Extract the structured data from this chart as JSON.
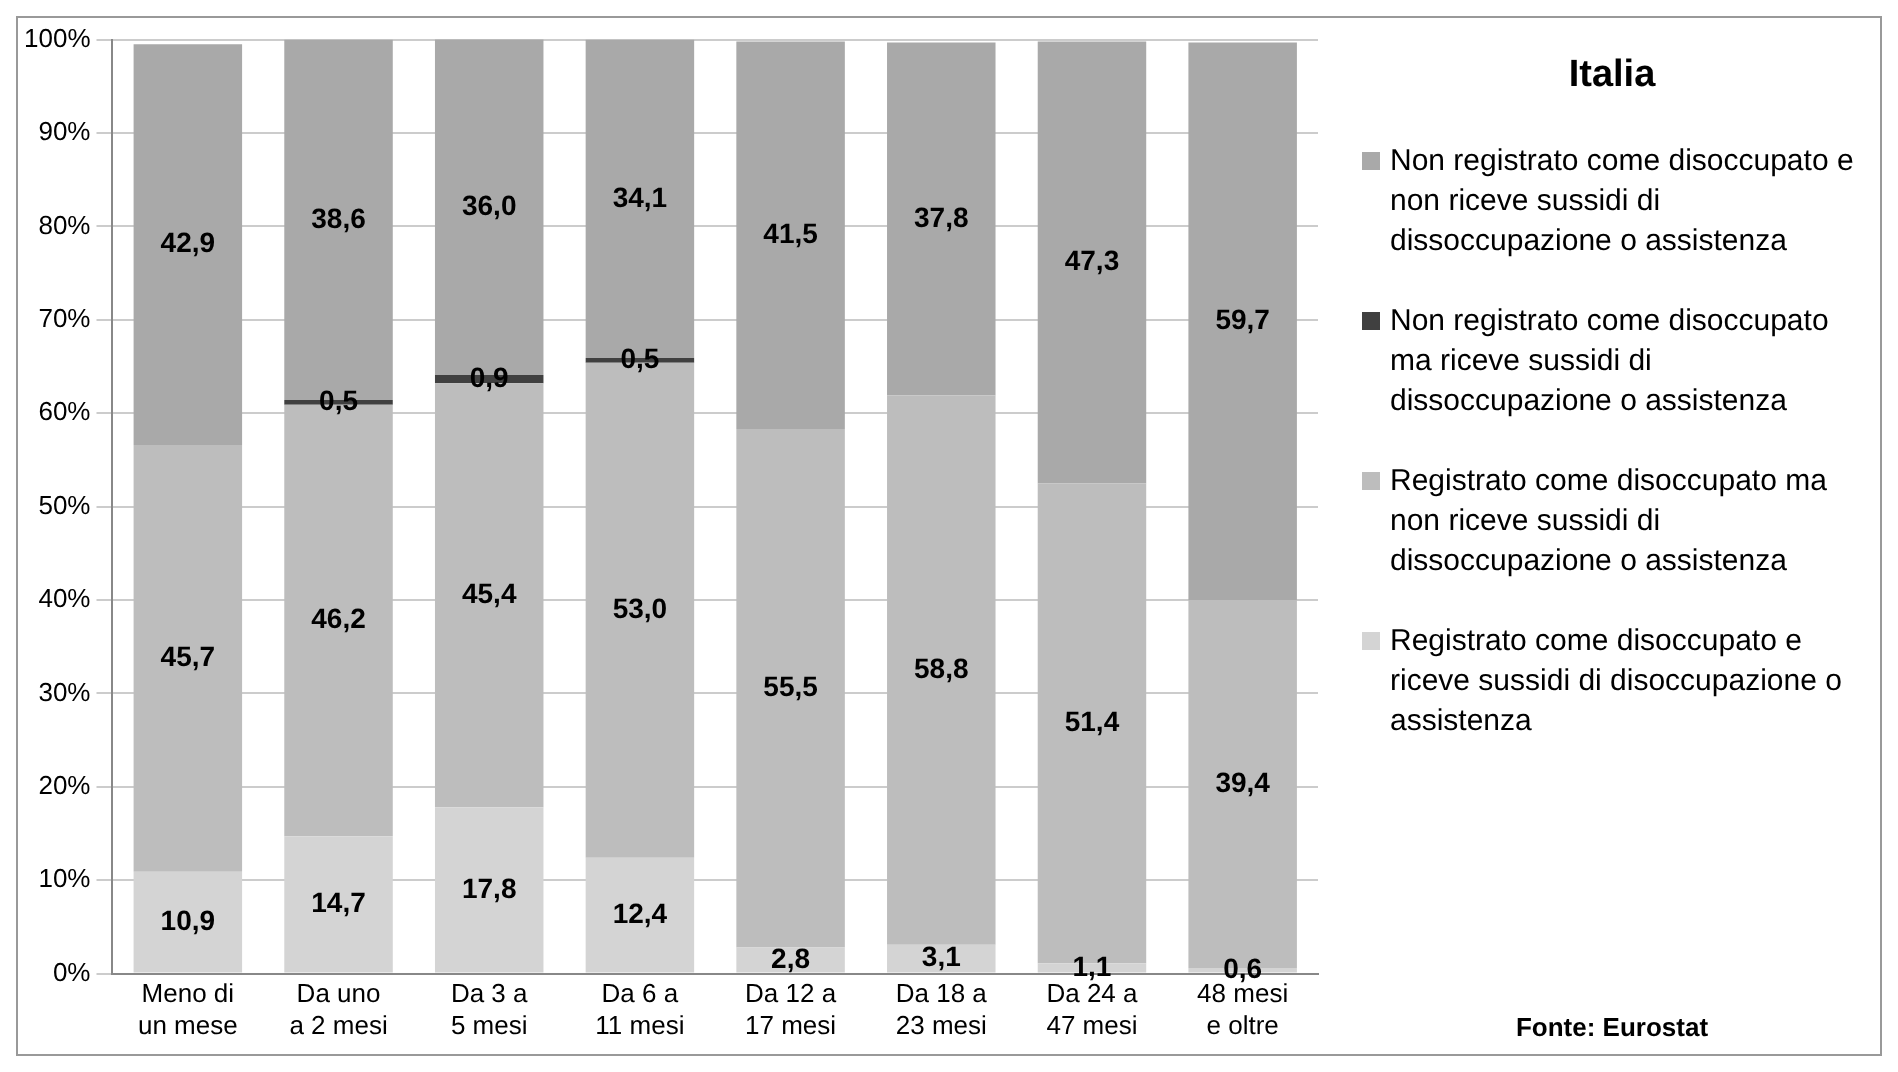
{
  "chart_data": {
    "type": "bar",
    "stacked": true,
    "legend_title": "Italia",
    "legend": "right",
    "grid": "y",
    "categories": [
      "Meno di un mese",
      "Da uno a 2 mesi",
      "Da 3 a 5 mesi",
      "Da 6 a 11 mesi",
      "Da 12 a 17 mesi",
      "Da 18 a 23 mesi",
      "Da 24 a 47 mesi",
      "48 mesi e oltre"
    ],
    "ylim": [
      0,
      100
    ],
    "yticks": [
      {
        "value": 0,
        "label": "0%"
      },
      {
        "value": 10,
        "label": "10%"
      },
      {
        "value": 20,
        "label": "20%"
      },
      {
        "value": 30,
        "label": "30%"
      },
      {
        "value": 40,
        "label": "40%"
      },
      {
        "value": 50,
        "label": "50%"
      },
      {
        "value": 60,
        "label": "60%"
      },
      {
        "value": 70,
        "label": "70%"
      },
      {
        "value": 80,
        "label": "80%"
      },
      {
        "value": 90,
        "label": "90%"
      },
      {
        "value": 100,
        "label": "100%"
      }
    ],
    "series": [
      {
        "name": "Registrato come disoccupato e riceve sussidi di disoccupazione o assistenza",
        "color": "#d4d4d4",
        "values": [
          10.9,
          14.7,
          17.8,
          12.4,
          2.8,
          3.1,
          1.1,
          0.6
        ],
        "value_labels": [
          "10,9",
          "14,7",
          "17,8",
          "12,4",
          "2,8",
          "3,1",
          "1,1",
          "0,6"
        ]
      },
      {
        "name": "Registrato come disoccupato ma non  riceve sussidi di dissoccupazione o assistenza",
        "color": "#bdbdbd",
        "values": [
          45.7,
          46.2,
          45.4,
          53.0,
          55.5,
          58.8,
          51.4,
          39.4
        ],
        "value_labels": [
          "45,7",
          "46,2",
          "45,4",
          "53,0",
          "55,5",
          "58,8",
          "51,4",
          "39,4"
        ]
      },
      {
        "name": "Non registrato come disoccupato ma  riceve sussidi di dissoccupazione o assistenza",
        "color": "#404040",
        "values": [
          null,
          0.5,
          0.9,
          0.5,
          null,
          null,
          null,
          null
        ],
        "value_labels": [
          null,
          "0,5",
          "0,9",
          "0,5",
          null,
          null,
          null,
          null
        ]
      },
      {
        "name": "Non registrato come disoccupato e non  riceve sussidi di dissoccupazione o assistenza",
        "color": "#a9a9a9",
        "values": [
          42.9,
          38.6,
          36.0,
          34.1,
          41.5,
          37.8,
          47.3,
          59.7
        ],
        "value_labels": [
          "42,9",
          "38,6",
          "36,0",
          "34,1",
          "41,5",
          "37,8",
          "47,3",
          "59,7"
        ]
      }
    ],
    "annotations": [
      "Fonte: Eurostat"
    ]
  }
}
